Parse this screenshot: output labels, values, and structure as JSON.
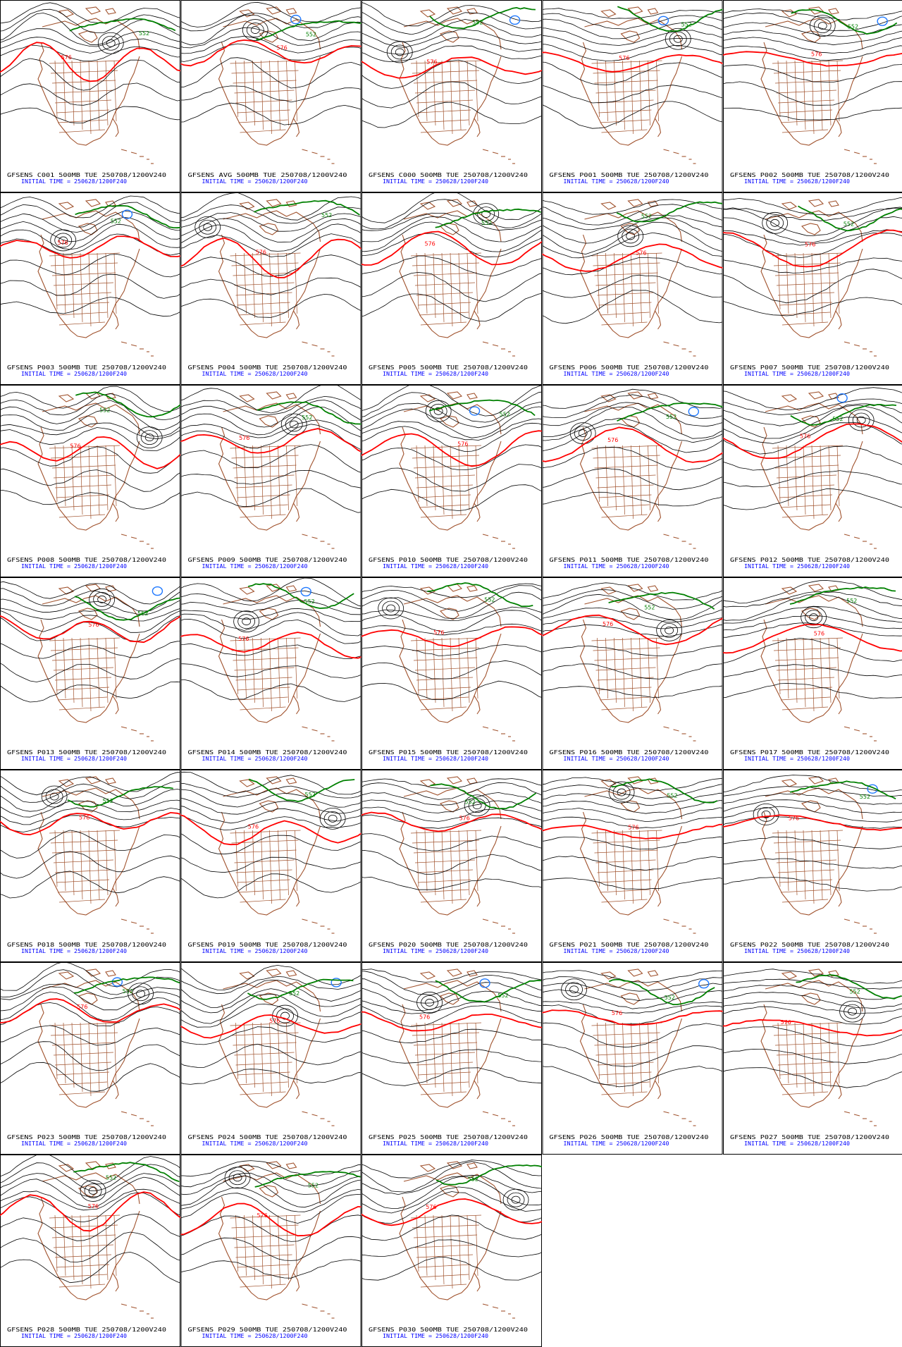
{
  "colors": {
    "border": "#000000",
    "coast": "#a0522d",
    "contour": "#000000",
    "line576": "#ff0000",
    "line552": "#008000",
    "low": "#1e78ff",
    "caption_line1": "#000000",
    "caption_line2": "#0000ff"
  },
  "contour_labels": {
    "high": "576",
    "low": "552"
  },
  "panels": [
    {
      "line1": "GFSENS C001 500MB TUE 250708/1200V240",
      "line2": "INITIAL TIME = 250628/1200F240"
    },
    {
      "line1": "GFSENS AVG 500MB TUE 250708/1200V240",
      "line2": "INITIAL TIME = 250628/1200F240"
    },
    {
      "line1": "GFSENS C000 500MB TUE 250708/1200V240",
      "line2": "INITIAL TIME = 250628/1200F240"
    },
    {
      "line1": "GFSENS P001 500MB TUE 250708/1200V240",
      "line2": "INITIAL TIME = 250628/1200F240"
    },
    {
      "line1": "GFSENS P002 500MB TUE 250708/1200V240",
      "line2": "INITIAL TIME = 250628/1200F240"
    },
    {
      "line1": "GFSENS P003 500MB TUE 250708/1200V240",
      "line2": "INITIAL TIME = 250628/1200F240"
    },
    {
      "line1": "GFSENS P004 500MB TUE 250708/1200V240",
      "line2": "INITIAL TIME = 250628/1200F240"
    },
    {
      "line1": "GFSENS P005 500MB TUE 250708/1200V240",
      "line2": "INITIAL TIME = 250628/1200F240"
    },
    {
      "line1": "GFSENS P006 500MB TUE 250708/1200V240",
      "line2": "INITIAL TIME = 250628/1200F240"
    },
    {
      "line1": "GFSENS P007 500MB TUE 250708/1200V240",
      "line2": "INITIAL TIME = 250628/1200F240"
    },
    {
      "line1": "GFSENS P008 500MB TUE 250708/1200V240",
      "line2": "INITIAL TIME = 250628/1200F240"
    },
    {
      "line1": "GFSENS P009 500MB TUE 250708/1200V240",
      "line2": "INITIAL TIME = 250628/1200F240"
    },
    {
      "line1": "GFSENS P010 500MB TUE 250708/1200V240",
      "line2": "INITIAL TIME = 250628/1200F240"
    },
    {
      "line1": "GFSENS P011 500MB TUE 250708/1200V240",
      "line2": "INITIAL TIME = 250628/1200F240"
    },
    {
      "line1": "GFSENS P012 500MB TUE 250708/1200V240",
      "line2": "INITIAL TIME = 250628/1200F240"
    },
    {
      "line1": "GFSENS P013 500MB TUE 250708/1200V240",
      "line2": "INITIAL TIME = 250628/1200F240"
    },
    {
      "line1": "GFSENS P014 500MB TUE 250708/1200V240",
      "line2": "INITIAL TIME = 250628/1200F240"
    },
    {
      "line1": "GFSENS P015 500MB TUE 250708/1200V240",
      "line2": "INITIAL TIME = 250628/1200F240"
    },
    {
      "line1": "GFSENS P016 500MB TUE 250708/1200V240",
      "line2": "INITIAL TIME = 250628/1200F240"
    },
    {
      "line1": "GFSENS P017 500MB TUE 250708/1200V240",
      "line2": "INITIAL TIME = 250628/1200F240"
    },
    {
      "line1": "GFSENS P018 500MB TUE 250708/1200V240",
      "line2": "INITIAL TIME = 250628/1200F240"
    },
    {
      "line1": "GFSENS P019 500MB TUE 250708/1200V240",
      "line2": "INITIAL TIME = 250628/1200F240"
    },
    {
      "line1": "GFSENS P020 500MB TUE 250708/1200V240",
      "line2": "INITIAL TIME = 250628/1200F240"
    },
    {
      "line1": "GFSENS P021 500MB TUE 250708/1200V240",
      "line2": "INITIAL TIME = 250628/1200F240"
    },
    {
      "line1": "GFSENS P022 500MB TUE 250708/1200V240",
      "line2": "INITIAL TIME = 250628/1200F240"
    },
    {
      "line1": "GFSENS P023 500MB TUE 250708/1200V240",
      "line2": "INITIAL TIME = 250628/1200F240"
    },
    {
      "line1": "GFSENS P024 500MB TUE 250708/1200V240",
      "line2": "INITIAL TIME = 250628/1200F240"
    },
    {
      "line1": "GFSENS P025 500MB TUE 250708/1200V240",
      "line2": "INITIAL TIME = 250628/1200F240"
    },
    {
      "line1": "GFSENS P026 500MB TUE 250708/1200V240",
      "line2": "INITIAL TIME = 250628/1200F240"
    },
    {
      "line1": "GFSENS P027 500MB TUE 250708/1200V240",
      "line2": "INITIAL TIME = 250628/1200F240"
    },
    {
      "line1": "GFSENS P028 500MB TUE 250708/1200V240",
      "line2": "INITIAL TIME = 250628/1200F240"
    },
    {
      "line1": "GFSENS P029 500MB TUE 250708/1200V240",
      "line2": "INITIAL TIME = 250628/1200F240"
    },
    {
      "line1": "GFSENS P030 500MB TUE 250708/1200V240",
      "line2": "INITIAL TIME = 250628/1200F240"
    }
  ]
}
